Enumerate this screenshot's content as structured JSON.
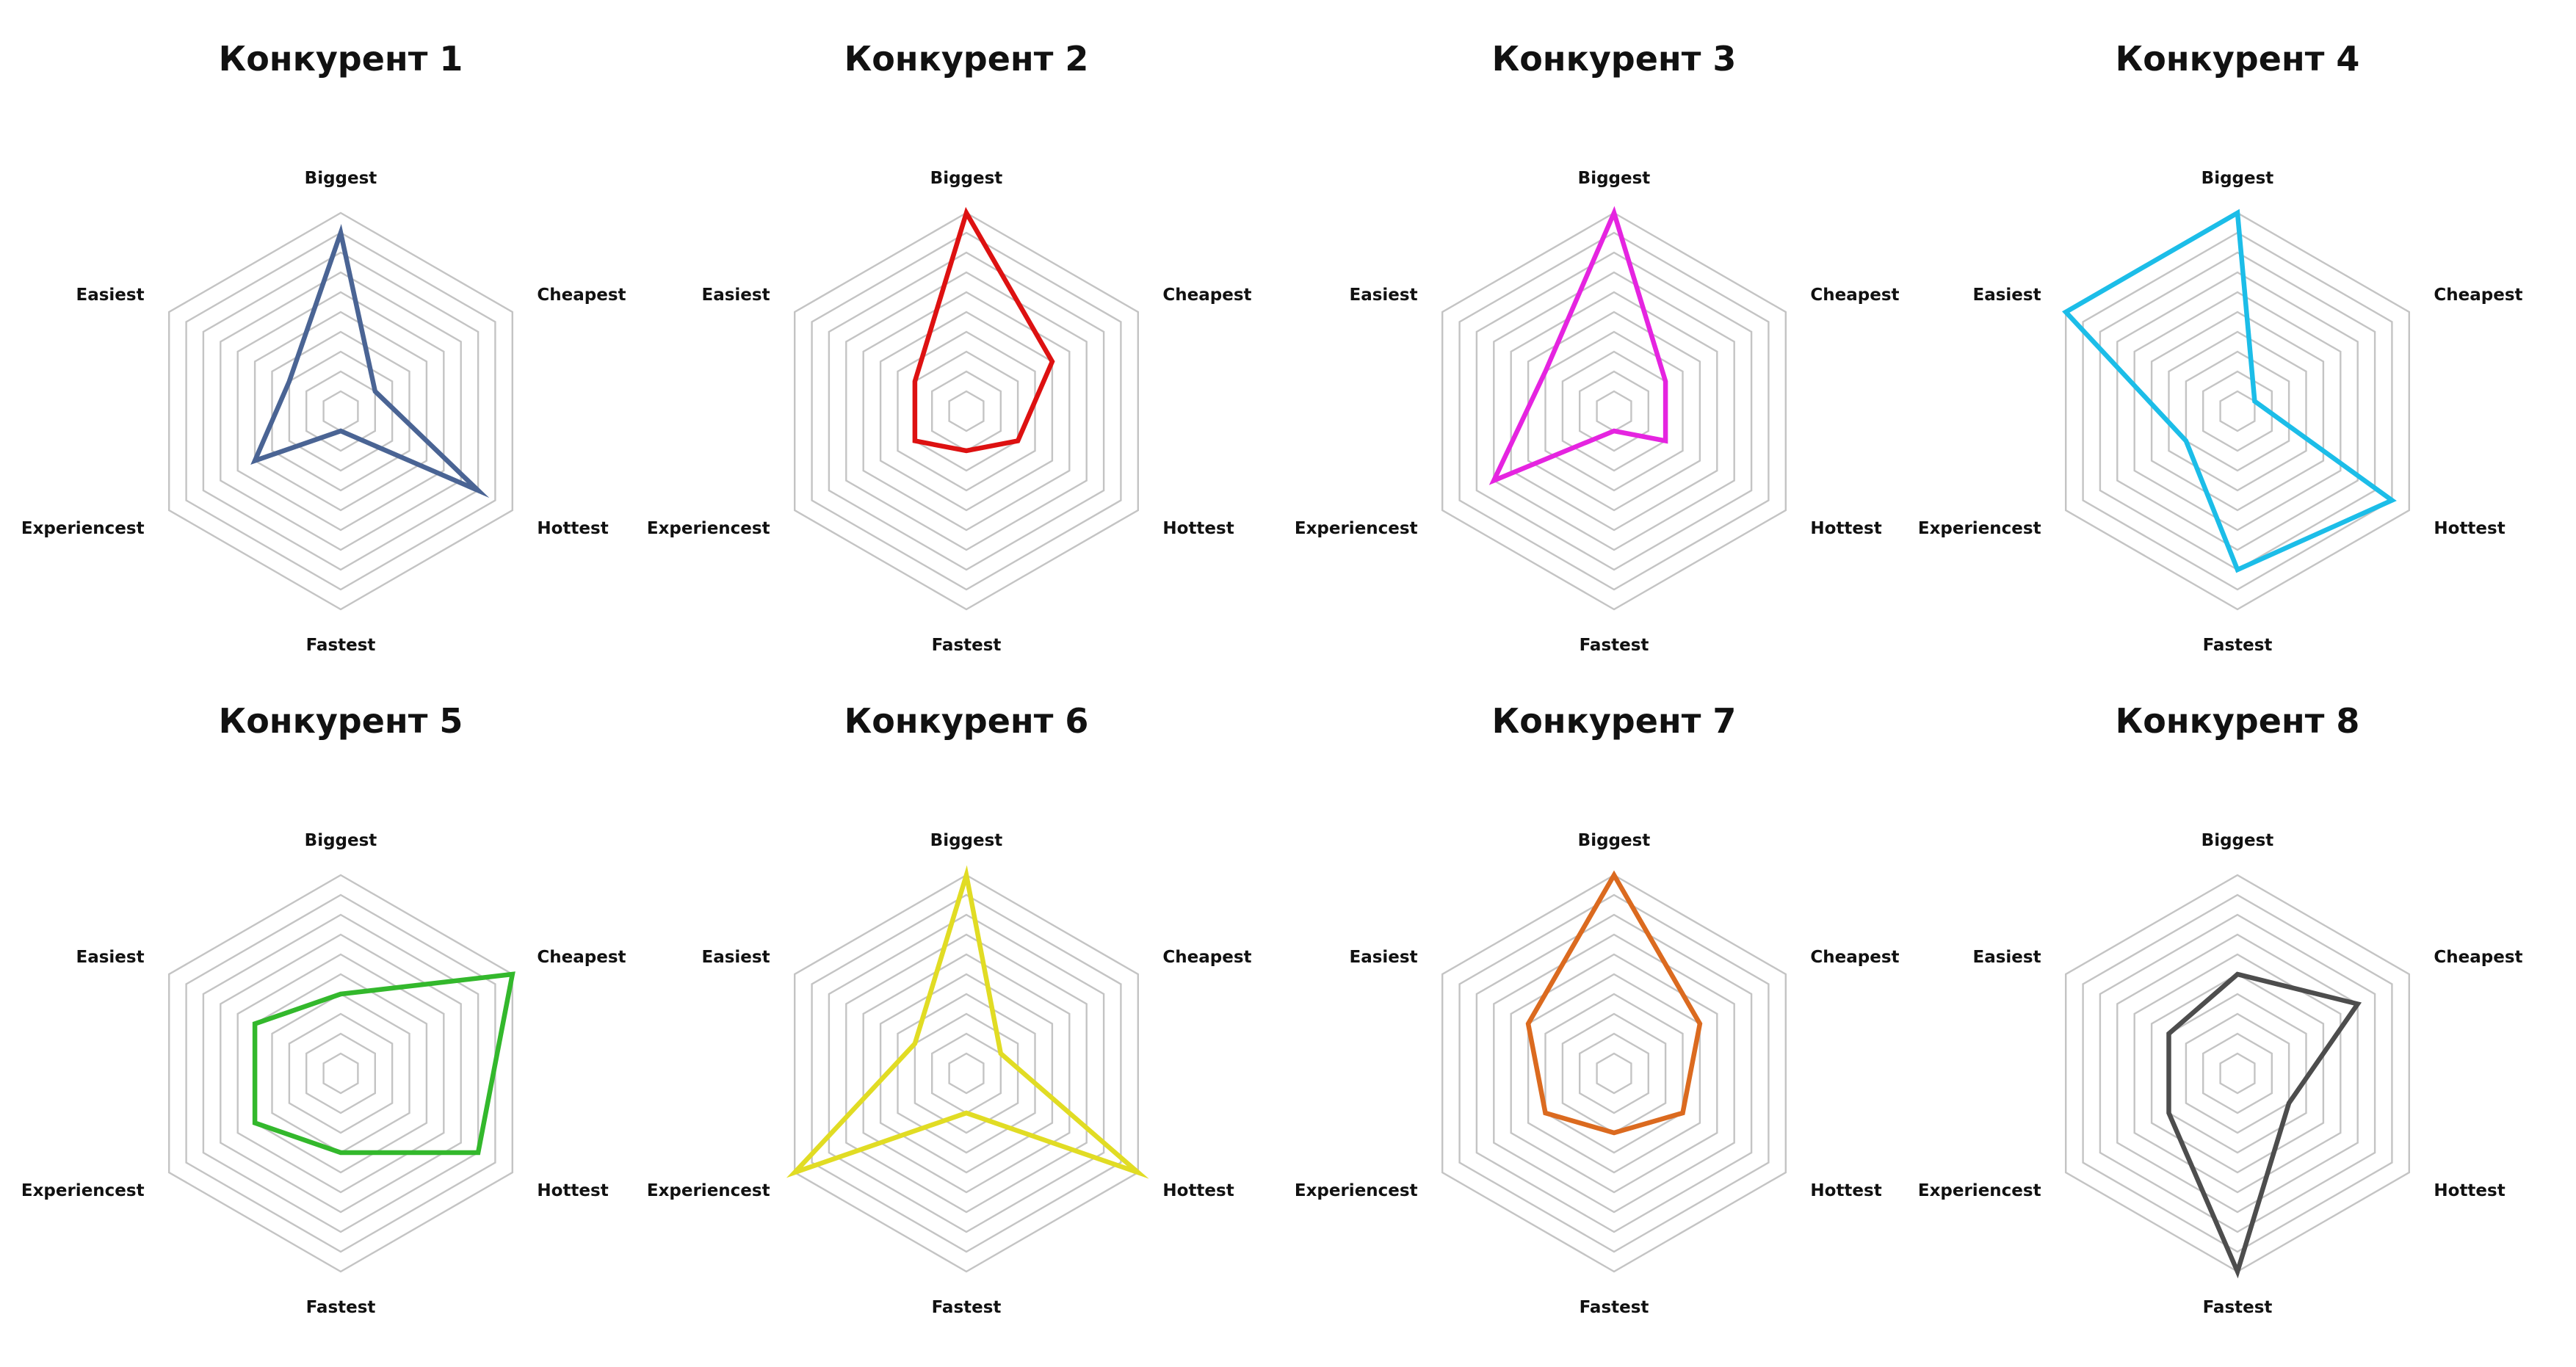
{
  "chart_data": [
    {
      "type": "radar",
      "title": "Конкурент 1",
      "axes": [
        "Biggest",
        "Cheapest",
        "Hottest",
        "Fastest",
        "Experiencest",
        "Easiest"
      ],
      "values": [
        9,
        2,
        8,
        1,
        5,
        3
      ],
      "rlim": [
        0,
        10
      ],
      "grid_rings": 10,
      "color": "#4a6494"
    },
    {
      "type": "radar",
      "title": "Конкурент 2",
      "axes": [
        "Biggest",
        "Cheapest",
        "Hottest",
        "Fastest",
        "Experiencest",
        "Easiest"
      ],
      "values": [
        10,
        5,
        3,
        2,
        3,
        3
      ],
      "rlim": [
        0,
        10
      ],
      "grid_rings": 10,
      "color": "#dd1111"
    },
    {
      "type": "radar",
      "title": "Конкурент 3",
      "axes": [
        "Biggest",
        "Cheapest",
        "Hottest",
        "Fastest",
        "Experiencest",
        "Easiest"
      ],
      "values": [
        10,
        3,
        3,
        1,
        7,
        4
      ],
      "rlim": [
        0,
        10
      ],
      "grid_rings": 10,
      "color": "#e524e0"
    },
    {
      "type": "radar",
      "title": "Конкурент 4",
      "axes": [
        "Biggest",
        "Cheapest",
        "Hottest",
        "Fastest",
        "Experiencest",
        "Easiest"
      ],
      "values": [
        10,
        1,
        9,
        8,
        3,
        10
      ],
      "rlim": [
        0,
        10
      ],
      "grid_rings": 10,
      "color": "#1cbde8"
    },
    {
      "type": "radar",
      "title": "Конкурент 5",
      "axes": [
        "Biggest",
        "Cheapest",
        "Hottest",
        "Fastest",
        "Experiencest",
        "Easiest"
      ],
      "values": [
        4,
        10,
        8,
        4,
        5,
        5
      ],
      "rlim": [
        0,
        10
      ],
      "grid_rings": 10,
      "color": "#33b82c"
    },
    {
      "type": "radar",
      "title": "Конкурент 6",
      "axes": [
        "Biggest",
        "Cheapest",
        "Hottest",
        "Fastest",
        "Experiencest",
        "Easiest"
      ],
      "values": [
        10,
        2,
        10,
        2,
        10,
        3
      ],
      "rlim": [
        0,
        10
      ],
      "grid_rings": 10,
      "color": "#e1dc24"
    },
    {
      "type": "radar",
      "title": "Конкурент 7",
      "axes": [
        "Biggest",
        "Cheapest",
        "Hottest",
        "Fastest",
        "Experiencest",
        "Easiest"
      ],
      "values": [
        10,
        5,
        4,
        3,
        4,
        5
      ],
      "rlim": [
        0,
        10
      ],
      "grid_rings": 10,
      "color": "#db6a1f"
    },
    {
      "type": "radar",
      "title": "Конкурент 8",
      "axes": [
        "Biggest",
        "Cheapest",
        "Hottest",
        "Fastest",
        "Experiencest",
        "Easiest"
      ],
      "values": [
        5,
        7,
        3,
        10,
        4,
        4
      ],
      "rlim": [
        0,
        10
      ],
      "grid_rings": 10,
      "color": "#4d4d4d"
    }
  ]
}
